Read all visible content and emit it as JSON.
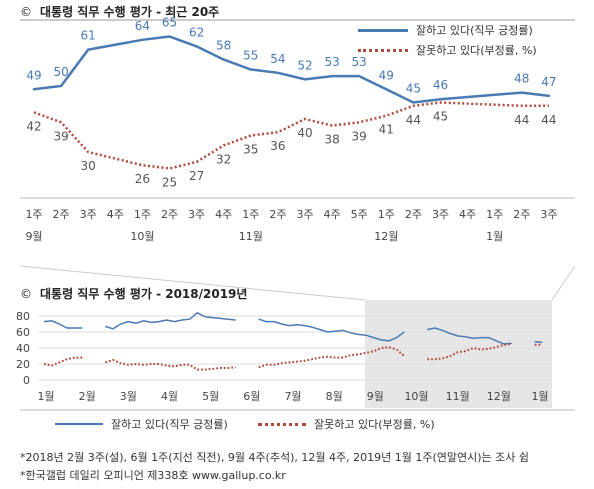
{
  "chart1_title": {
    "mark": "©",
    "text": "대통령 직무 수행 평가 - 최근 20주"
  },
  "chart2_title": {
    "mark": "©",
    "text": "대통령 직무 수행 평가 - 2018/2019년"
  },
  "colors": {
    "positive": "#4a7ab3",
    "negative": "#b04a3a",
    "grid": "#dddddd",
    "shade": "#e6e6e6"
  },
  "chart_data": [
    {
      "type": "line",
      "title": "대통령 직무 수행 평가 - 최근 20주",
      "x": [
        "1주",
        "2주",
        "3주",
        "4주",
        "1주",
        "2주",
        "3주",
        "4주",
        "1주",
        "2주",
        "3주",
        "4주",
        "5주",
        "1주",
        "2주",
        "3주",
        "4주",
        "1주",
        "2주",
        "3주"
      ],
      "month_labels": [
        {
          "index": 0,
          "label": "9월"
        },
        {
          "index": 4,
          "label": "10월"
        },
        {
          "index": 8,
          "label": "11월"
        },
        {
          "index": 13,
          "label": "12월"
        },
        {
          "index": 17,
          "label": "1월"
        }
      ],
      "series": [
        {
          "name": "잘하고 있다(직무 긍정률)",
          "style": "solid",
          "values": [
            49,
            50,
            61,
            null,
            64,
            65,
            62,
            58,
            55,
            54,
            52,
            53,
            53,
            49,
            45,
            46,
            null,
            null,
            48,
            47
          ]
        },
        {
          "name": "잘못하고 있다(부정률, %)",
          "style": "dotted",
          "values": [
            42,
            39,
            30,
            null,
            26,
            25,
            27,
            32,
            35,
            36,
            40,
            38,
            39,
            41,
            44,
            45,
            null,
            null,
            44,
            44
          ]
        }
      ],
      "ylim": [
        20,
        70
      ]
    },
    {
      "type": "line",
      "title": "대통령 직무 수행 평가 - 2018/2019년",
      "yticks": [
        0,
        20,
        40,
        60,
        80
      ],
      "ylim": [
        0,
        90
      ],
      "months": [
        "1월",
        "2월",
        "3월",
        "4월",
        "5월",
        "6월",
        "7월",
        "8월",
        "9월",
        "10월",
        "11월",
        "12월",
        "1월"
      ],
      "series": [
        {
          "name": "잘하고 있다(직무 긍정률)",
          "style": "solid",
          "segments": [
            [
              73,
              74,
              70,
              65,
              65,
              65
            ],
            [
              67,
              64,
              70,
              73,
              71,
              74,
              72,
              73,
              75,
              73,
              75,
              76,
              84,
              79,
              78,
              77,
              76,
              75
            ],
            [
              76,
              73,
              73,
              70,
              68,
              69,
              68,
              66,
              63,
              60,
              61,
              62,
              59,
              57,
              56,
              53,
              50,
              49,
              53,
              60
            ],
            [
              63,
              65,
              62,
              58,
              55,
              54,
              52,
              53,
              53,
              49,
              45,
              46
            ],
            [
              48,
              47
            ]
          ]
        },
        {
          "name": "잘못하고 있다(부정률, %)",
          "style": "dotted",
          "segments": [
            [
              20,
              18,
              22,
              26,
              28,
              28
            ],
            [
              22,
              25,
              21,
              19,
              20,
              19,
              20,
              20,
              18,
              17,
              19,
              19,
              13,
              13,
              14,
              15,
              15,
              16
            ],
            [
              16,
              19,
              19,
              21,
              22,
              23,
              24,
              26,
              28,
              29,
              28,
              28,
              31,
              32,
              34,
              36,
              40,
              41,
              38,
              30
            ],
            [
              26,
              26,
              27,
              30,
              35,
              36,
              40,
              38,
              39,
              41,
              44,
              45
            ],
            [
              44,
              44
            ]
          ]
        }
      ]
    }
  ],
  "legend": {
    "positive": "잘하고 있다(직무 긍정률)",
    "negative": "잘못하고 있다(부정률, %)"
  },
  "notes": [
    "*2018년 2월 3주(설), 6월 1주(지선 직전), 9월 4주(추석), 12월 4주, 2019년 1월 1주(연말연시)는 조사 쉼",
    "*한국갤럽 데일리 오피니언 제338호 www.gallup.co.kr"
  ]
}
